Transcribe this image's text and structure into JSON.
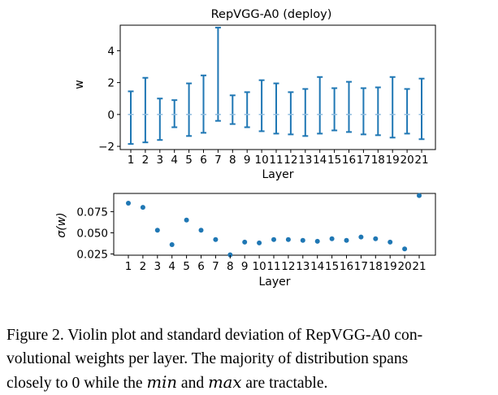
{
  "chart_data": [
    {
      "type": "errorbar",
      "title": "RepVGG-A0 (deploy)",
      "xlabel": "Layer",
      "ylabel": "w",
      "categories": [
        "1",
        "2",
        "3",
        "4",
        "5",
        "6",
        "7",
        "8",
        "9",
        "10",
        "11",
        "12",
        "13",
        "14",
        "15",
        "16",
        "17",
        "18",
        "19",
        "20",
        "21"
      ],
      "min": [
        -1.85,
        -1.75,
        -1.6,
        -0.8,
        -1.35,
        -1.15,
        -0.4,
        -0.6,
        -0.8,
        -1.05,
        -1.2,
        -1.25,
        -1.35,
        -1.2,
        -1.0,
        -1.1,
        -1.25,
        -1.3,
        -1.45,
        -1.2,
        -1.55
      ],
      "max": [
        1.45,
        2.3,
        1.0,
        0.9,
        1.95,
        2.45,
        5.45,
        1.2,
        1.4,
        2.15,
        1.95,
        1.4,
        1.6,
        2.35,
        1.65,
        2.05,
        1.65,
        1.7,
        2.35,
        1.6,
        2.25
      ],
      "center": [
        0,
        0,
        0,
        0,
        0,
        0,
        0,
        0,
        0,
        0,
        0,
        0,
        0,
        0,
        0,
        0,
        0,
        0,
        0,
        0,
        0
      ],
      "yticks": [
        "−2",
        "0",
        "2",
        "4"
      ],
      "ylim": [
        -2.2,
        5.6
      ],
      "color": "#1f77b4",
      "grid": false
    },
    {
      "type": "scatter",
      "title": "",
      "xlabel": "Layer",
      "ylabel": "σ(w)",
      "categories": [
        "1",
        "2",
        "3",
        "4",
        "5",
        "6",
        "7",
        "8",
        "9",
        "10",
        "11",
        "12",
        "13",
        "14",
        "15",
        "16",
        "17",
        "18",
        "19",
        "20",
        "21"
      ],
      "values": [
        0.085,
        0.08,
        0.053,
        0.036,
        0.065,
        0.053,
        0.042,
        0.024,
        0.039,
        0.038,
        0.042,
        0.042,
        0.041,
        0.04,
        0.043,
        0.041,
        0.045,
        0.043,
        0.039,
        0.031,
        0.094
      ],
      "yticks": [
        "0.025",
        "0.050",
        "0.075"
      ],
      "ylim": [
        0.0235,
        0.0965
      ],
      "color": "#1f77b4",
      "grid": false
    }
  ],
  "caption": {
    "line1": "Figure 2. Violin plot and standard deviation of RepVGG-A0 con-",
    "line2": "volutional weights per layer.  The majority of distribution spans",
    "line3_prefix": "closely to 0 while the ",
    "min_symbol": "min",
    "line3_mid": " and ",
    "max_symbol": "max",
    "line3_suffix": " are tractable."
  }
}
